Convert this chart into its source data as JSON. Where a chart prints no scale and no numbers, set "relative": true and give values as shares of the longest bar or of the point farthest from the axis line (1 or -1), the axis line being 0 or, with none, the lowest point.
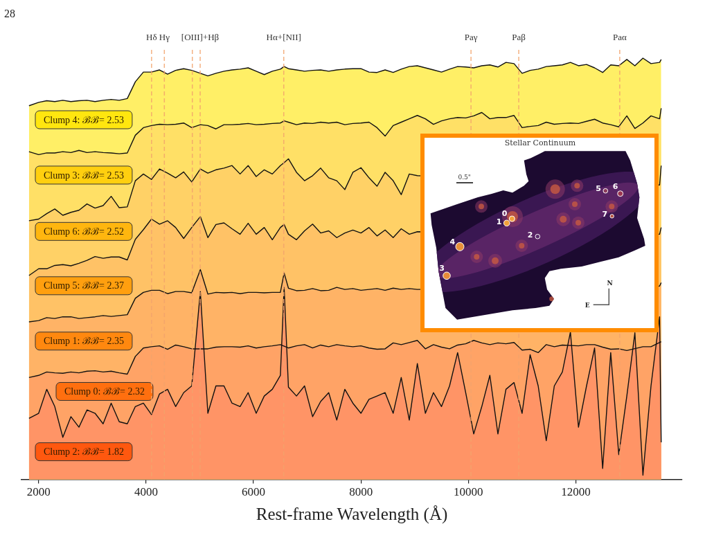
{
  "chart_data": {
    "type": "area",
    "relative": true,
    "xlabel": "Rest-frame Wavelength (Å)",
    "xlim": [
      1680,
      13980
    ],
    "xticks": [
      2000,
      4000,
      6000,
      8000,
      10000,
      12000
    ],
    "x": [
      1820,
      2000,
      2150,
      2300,
      2450,
      2600,
      2750,
      2900,
      3050,
      3200,
      3350,
      3500,
      3650,
      3800,
      3950,
      4100,
      4250,
      4400,
      4550,
      4700,
      4850,
      5010,
      5150,
      5300,
      5450,
      5600,
      5750,
      5900,
      6050,
      6200,
      6350,
      6500,
      6570,
      6650,
      6800,
      6950,
      7100,
      7250,
      7400,
      7550,
      7700,
      7850,
      8000,
      8150,
      8300,
      8450,
      8600,
      8750,
      8900,
      9050,
      9200,
      9350,
      9500,
      9650,
      9800,
      9950,
      10100,
      10250,
      10400,
      10550,
      10700,
      10850,
      11000,
      11150,
      11300,
      11450,
      11600,
      11750,
      11900,
      12050,
      12200,
      12350,
      12500,
      12650,
      12800,
      12950,
      13100,
      13250,
      13400,
      13560,
      13590
    ],
    "series": [
      {
        "name": "Clump 4: ℬℬ= 2.53",
        "color": "#ffef66",
        "values": [
          0.887,
          0.895,
          0.899,
          0.897,
          0.9,
          0.897,
          0.899,
          0.9,
          0.897,
          0.9,
          0.902,
          0.9,
          0.904,
          0.944,
          0.967,
          0.967,
          0.972,
          0.962,
          0.971,
          0.975,
          0.971,
          0.964,
          0.958,
          0.964,
          0.969,
          0.972,
          0.974,
          0.977,
          0.969,
          0.961,
          0.969,
          0.974,
          0.98,
          0.975,
          0.972,
          0.969,
          0.971,
          0.972,
          0.969,
          0.972,
          0.974,
          0.975,
          0.975,
          0.967,
          0.966,
          0.972,
          0.966,
          0.974,
          0.98,
          0.982,
          0.977,
          0.972,
          0.967,
          0.974,
          0.98,
          0.979,
          0.977,
          0.982,
          0.984,
          0.979,
          0.99,
          0.987,
          0.964,
          0.971,
          0.974,
          0.98,
          0.982,
          0.984,
          0.99,
          0.982,
          0.985,
          0.977,
          0.966,
          0.984,
          0.982,
          0.997,
          0.982,
          1.0,
          0.987,
          0.99,
          0.997
        ]
      },
      {
        "name": "Clump 3: ℬℬ= 2.53",
        "color": "#ffe066",
        "values": [
          0.778,
          0.771,
          0.775,
          0.775,
          0.778,
          0.776,
          0.781,
          0.776,
          0.778,
          0.776,
          0.775,
          0.773,
          0.775,
          0.817,
          0.835,
          0.84,
          0.843,
          0.842,
          0.843,
          0.846,
          0.835,
          0.842,
          0.84,
          0.832,
          0.842,
          0.842,
          0.843,
          0.845,
          0.842,
          0.843,
          0.845,
          0.846,
          0.851,
          0.848,
          0.842,
          0.846,
          0.845,
          0.848,
          0.846,
          0.848,
          0.842,
          0.845,
          0.846,
          0.848,
          0.835,
          0.815,
          0.84,
          0.848,
          0.856,
          0.864,
          0.856,
          0.843,
          0.851,
          0.856,
          0.859,
          0.858,
          0.863,
          0.871,
          0.856,
          0.859,
          0.859,
          0.864,
          0.835,
          0.838,
          0.84,
          0.848,
          0.843,
          0.845,
          0.846,
          0.845,
          0.85,
          0.855,
          0.846,
          0.842,
          0.837,
          0.863,
          0.833,
          0.846,
          0.863,
          0.856,
          0.881
        ]
      },
      {
        "name": "Clump 6: ℬℬ= 2.52",
        "color": "#ffd166",
        "values": [
          0.614,
          0.618,
          0.631,
          0.642,
          0.627,
          0.634,
          0.639,
          0.654,
          0.644,
          0.65,
          0.672,
          0.645,
          0.647,
          0.709,
          0.725,
          0.712,
          0.737,
          0.727,
          0.716,
          0.73,
          0.706,
          0.737,
          0.727,
          0.735,
          0.739,
          0.745,
          0.725,
          0.745,
          0.719,
          0.735,
          0.725,
          0.745,
          0.752,
          0.761,
          0.729,
          0.709,
          0.721,
          0.739,
          0.716,
          0.709,
          0.688,
          0.729,
          0.74,
          0.716,
          0.696,
          0.729,
          0.709,
          0.676,
          0.725,
          0.721,
          null,
          null,
          null,
          null,
          null,
          null,
          null,
          null,
          null,
          null,
          null,
          null,
          null,
          null,
          null,
          null,
          null,
          null,
          null,
          null,
          null,
          null,
          null,
          null,
          null,
          null,
          null,
          null,
          null,
          0.699,
          0.745
        ]
      },
      {
        "name": "Clump 5: ℬℬ= 2.37",
        "color": "#ffc266",
        "values": [
          0.484,
          0.5,
          0.5,
          0.508,
          0.51,
          0.507,
          0.513,
          0.52,
          0.529,
          0.525,
          0.528,
          0.528,
          0.521,
          0.57,
          0.593,
          0.618,
          0.606,
          0.614,
          0.598,
          0.572,
          0.598,
          0.624,
          0.574,
          0.605,
          0.609,
          0.595,
          0.582,
          0.608,
          0.582,
          0.598,
          0.569,
          0.598,
          0.605,
          0.582,
          0.569,
          0.59,
          0.606,
          0.585,
          0.59,
          0.574,
          0.585,
          0.592,
          0.585,
          0.598,
          0.578,
          0.592,
          0.574,
          0.595,
          0.582,
          0.588,
          null,
          null,
          null,
          null,
          null,
          null,
          null,
          null,
          null,
          null,
          null,
          null,
          null,
          null,
          null,
          null,
          null,
          null,
          null,
          null,
          null,
          null,
          null,
          null,
          null,
          null,
          null,
          null,
          null,
          0.582,
          0.598
        ]
      },
      {
        "name": "Clump 1: ℬℬ= 2.35",
        "color": "#ffb366",
        "values": [
          0.374,
          0.377,
          0.384,
          0.382,
          0.386,
          0.386,
          0.382,
          0.384,
          0.386,
          0.389,
          0.387,
          0.389,
          0.391,
          0.43,
          0.444,
          0.449,
          0.449,
          0.441,
          0.446,
          0.446,
          0.443,
          0.498,
          0.44,
          0.444,
          0.443,
          0.444,
          0.441,
          0.444,
          0.444,
          0.443,
          0.444,
          0.444,
          0.49,
          0.454,
          0.448,
          0.449,
          0.453,
          0.448,
          0.449,
          0.456,
          0.451,
          0.453,
          0.449,
          0.451,
          0.453,
          0.449,
          0.454,
          0.451,
          0.453,
          0.451,
          null,
          null,
          null,
          null,
          null,
          null,
          null,
          null,
          null,
          null,
          null,
          null,
          null,
          null,
          null,
          null,
          null,
          null,
          null,
          null,
          null,
          null,
          null,
          null,
          null,
          null,
          null,
          null,
          null,
          0.459,
          0.467
        ]
      },
      {
        "name": "Clump 0: ℬℬ= 2.32",
        "color": "#ffa366",
        "x": [
          1820,
          2000,
          2150,
          2300,
          2450,
          2600,
          2750,
          2900,
          3050,
          3200,
          3350,
          3500,
          3650,
          3800,
          3950,
          4100,
          4250,
          4400,
          4550,
          4700,
          4850,
          5150,
          5300,
          5450,
          5600,
          5750,
          5900,
          6050,
          6200,
          6350,
          6500,
          6650,
          6800,
          6950,
          7100,
          7250,
          7400,
          7550,
          7700,
          7850,
          8000,
          8150,
          8300,
          8450,
          8600,
          8750,
          8900,
          9050,
          9200,
          9350,
          9500,
          9650,
          9800,
          9950,
          10100,
          10250,
          10400,
          10550,
          10700,
          10850,
          11000,
          11150,
          11300,
          11450,
          11600,
          11750,
          12050,
          12200,
          12350,
          12500,
          12650,
          12800,
          12950,
          13250,
          13400,
          13590
        ],
        "values": [
          0.242,
          0.247,
          0.255,
          0.253,
          0.252,
          0.255,
          0.253,
          0.257,
          0.258,
          0.255,
          0.257,
          0.253,
          0.25,
          0.292,
          0.312,
          0.315,
          0.317,
          0.309,
          0.319,
          0.315,
          0.31,
          0.31,
          0.314,
          0.315,
          0.315,
          0.314,
          0.317,
          0.312,
          0.315,
          0.317,
          0.32,
          0.312,
          0.317,
          0.32,
          0.312,
          0.319,
          0.315,
          0.32,
          0.317,
          0.315,
          0.317,
          0.312,
          0.309,
          0.31,
          0.324,
          0.32,
          0.325,
          0.33,
          0.31,
          0.32,
          0.314,
          0.31,
          0.319,
          0.322,
          0.33,
          0.324,
          0.32,
          0.324,
          0.322,
          0.325,
          0.307,
          0.309,
          0.301,
          0.32,
          0.315,
          0.319,
          0.317,
          0.32,
          0.32,
          0.314,
          0.309,
          0.31,
          0.306,
          0.315,
          0.315,
          0.327
        ]
      },
      {
        "name": "Clump 2: ℬℬ= 1.82",
        "color": "#ff9466",
        "values": [
          0.145,
          0.157,
          0.214,
          0.173,
          0.1,
          0.149,
          0.124,
          0.165,
          0.157,
          0.132,
          0.181,
          0.137,
          0.132,
          0.173,
          0.181,
          0.154,
          0.203,
          0.214,
          0.173,
          0.206,
          0.222,
          0.446,
          0.157,
          0.222,
          0.222,
          0.181,
          0.173,
          0.206,
          0.157,
          0.198,
          0.214,
          0.247,
          0.456,
          0.219,
          0.198,
          0.222,
          0.149,
          0.185,
          0.206,
          0.141,
          0.214,
          0.181,
          0.157,
          0.19,
          0.198,
          0.206,
          0.157,
          0.242,
          0.141,
          0.275,
          0.157,
          0.206,
          0.173,
          0.222,
          0.301,
          0.206,
          0.108,
          0.173,
          0.247,
          0.108,
          0.214,
          0.23,
          0.157,
          0.296,
          0.222,
          0.092,
          0.222,
          0.255,
          0.35,
          0.124,
          0.222,
          0.312,
          0.026,
          0.301,
          0.059,
          0.198,
          0.348,
          0.01,
          0.222,
          0.386,
          0.088
        ]
      }
    ],
    "ref_lines": [
      {
        "axis": "x",
        "value": 4102,
        "label": "Hδ",
        "color": "#f2a36c",
        "line_style": "dashed"
      },
      {
        "axis": "x",
        "value": 4340,
        "label": "Hγ",
        "color": "#f2a36c",
        "line_style": "dashed"
      },
      {
        "axis": "x",
        "value": 4861,
        "color": "#f2a36c",
        "line_style": "dashed"
      },
      {
        "axis": "x",
        "value": 5007,
        "label": "[OIII]+Hβ",
        "color": "#f2a36c",
        "line_style": "dashed"
      },
      {
        "axis": "x",
        "value": 6563,
        "label": "Hα+[NII]",
        "color": "#f2a36c",
        "line_style": "dashed"
      },
      {
        "axis": "x",
        "value": 10049,
        "label": "Paγ",
        "color": "#f2a36c",
        "line_style": "dashed"
      },
      {
        "axis": "x",
        "value": 10938,
        "label": "Paβ",
        "color": "#f2a36c",
        "line_style": "dashed"
      },
      {
        "axis": "x",
        "value": 12818,
        "label": "Paα",
        "color": "#f2a36c",
        "line_style": "dashed"
      }
    ],
    "annotations": [
      "28",
      "Stellar Continuum",
      "0.5\"",
      "0",
      "1",
      "2",
      "3",
      "4",
      "5",
      "6",
      "7",
      "N",
      "E"
    ]
  }
}
